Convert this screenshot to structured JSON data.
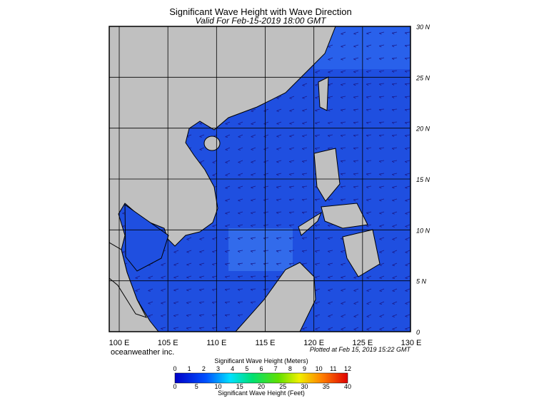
{
  "header": {
    "title": "Significant Wave Height with Wave Direction",
    "subtitle": "Valid For Feb-15-2019 18:00 GMT"
  },
  "map": {
    "lat_labels": [
      "30 N",
      "25 N",
      "20 N",
      "15 N",
      "10 N",
      "5 N",
      "0"
    ],
    "lon_labels": [
      "100 E",
      "105 E",
      "110 E",
      "115 E",
      "120 E",
      "125 E",
      "130 E"
    ]
  },
  "credits": {
    "left": "oceanweather inc.",
    "right": "Plotted at Feb 15, 2019 15:22 GMT"
  },
  "colorbar": {
    "title_top": "Significant Wave Height (Meters)",
    "meter_ticks": [
      0,
      1,
      2,
      3,
      4,
      5,
      6,
      7,
      8,
      9,
      10,
      11,
      12
    ],
    "feet_ticks": [
      0,
      5,
      10,
      15,
      20,
      25,
      30,
      35,
      40
    ],
    "title_bottom": "Significant Wave Height (Feet)"
  }
}
